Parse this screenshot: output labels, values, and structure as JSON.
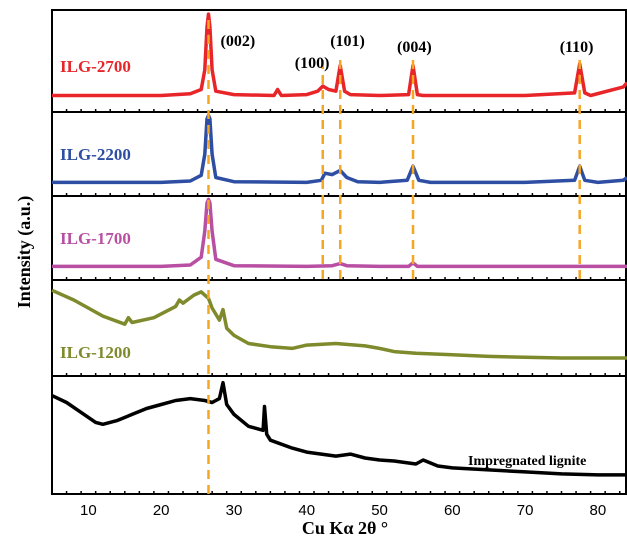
{
  "chart_data": {
    "type": "line",
    "xlabel": "Cu Kα 2θ °",
    "ylabel": "Intensity (a.u.)",
    "xlim": [
      5,
      84
    ],
    "xticks": [
      10,
      20,
      30,
      40,
      50,
      60,
      70,
      80
    ],
    "grid": false,
    "legend": "none",
    "reference_lines_x": [
      26.5,
      42.2,
      44.6,
      54.6,
      77.5
    ],
    "peak_labels": [
      {
        "text": "(002)",
        "x": 26.5,
        "panel": 0
      },
      {
        "text": "(100)",
        "x": 42.2,
        "panel": 0
      },
      {
        "text": "(101)",
        "x": 44.6,
        "panel": 0
      },
      {
        "text": "(004)",
        "x": 54.6,
        "panel": 0
      },
      {
        "text": "(110)",
        "x": 77.5,
        "panel": 0
      }
    ],
    "series": [
      {
        "name": "ILG-2700",
        "color": "#e8262a",
        "x": [
          5,
          20,
          24,
          25.5,
          26.0,
          26.3,
          26.5,
          26.7,
          27.0,
          27.5,
          30,
          35.5,
          36.0,
          36.5,
          40,
          41.5,
          42.2,
          43.0,
          44.0,
          44.6,
          45.2,
          46,
          50,
          54.0,
          54.6,
          55.2,
          56,
          60,
          70,
          76.8,
          77.5,
          78.2,
          79,
          83.5,
          84
        ],
        "y": [
          0.05,
          0.05,
          0.07,
          0.12,
          0.35,
          0.85,
          1.0,
          0.85,
          0.35,
          0.1,
          0.06,
          0.05,
          0.12,
          0.05,
          0.06,
          0.1,
          0.16,
          0.12,
          0.1,
          0.4,
          0.1,
          0.06,
          0.05,
          0.06,
          0.4,
          0.06,
          0.05,
          0.05,
          0.05,
          0.08,
          0.42,
          0.08,
          0.05,
          0.15,
          0.2
        ]
      },
      {
        "name": "ILG-2200",
        "color": "#2d4ea2",
        "x": [
          5,
          20,
          24,
          25.5,
          26.0,
          26.3,
          26.5,
          26.7,
          27.0,
          27.5,
          30,
          40,
          42.0,
          42.5,
          43.5,
          44.6,
          45.5,
          47,
          50,
          53.8,
          54.6,
          55.4,
          57,
          70,
          76.8,
          77.5,
          78.2,
          80,
          83.5,
          84
        ],
        "y": [
          0.05,
          0.05,
          0.07,
          0.15,
          0.45,
          0.95,
          1.0,
          0.95,
          0.45,
          0.12,
          0.06,
          0.05,
          0.08,
          0.18,
          0.16,
          0.22,
          0.12,
          0.06,
          0.05,
          0.08,
          0.28,
          0.08,
          0.05,
          0.05,
          0.08,
          0.28,
          0.08,
          0.05,
          0.08,
          0.12
        ]
      },
      {
        "name": "ILG-1700",
        "color": "#b84fa3",
        "x": [
          5,
          20,
          24,
          25.5,
          26.0,
          26.3,
          26.5,
          26.7,
          27.0,
          27.5,
          30,
          40,
          43.5,
          44.6,
          45.5,
          50,
          54.0,
          54.6,
          55.2,
          60,
          84
        ],
        "y": [
          0.05,
          0.05,
          0.07,
          0.18,
          0.55,
          0.95,
          1.0,
          0.95,
          0.55,
          0.15,
          0.06,
          0.05,
          0.06,
          0.09,
          0.06,
          0.05,
          0.05,
          0.1,
          0.05,
          0.05,
          0.05
        ]
      },
      {
        "name": "ILG-1200",
        "color": "#7f8a2c",
        "x": [
          5,
          8,
          12,
          15,
          15.5,
          16,
          19,
          22,
          22.5,
          23,
          24.5,
          25.5,
          26.5,
          27,
          28,
          28.5,
          29,
          30,
          32,
          35,
          38,
          40,
          44,
          48,
          50,
          52,
          55,
          60,
          65,
          70,
          75,
          80,
          84
        ],
        "y": [
          0.92,
          0.8,
          0.6,
          0.5,
          0.58,
          0.52,
          0.58,
          0.72,
          0.8,
          0.76,
          0.86,
          0.9,
          0.82,
          0.7,
          0.55,
          0.68,
          0.45,
          0.36,
          0.26,
          0.22,
          0.2,
          0.24,
          0.26,
          0.23,
          0.2,
          0.16,
          0.14,
          0.12,
          0.1,
          0.09,
          0.08,
          0.08,
          0.08
        ]
      },
      {
        "name": "Impregnated lignite",
        "color": "#000000",
        "x": [
          5,
          7,
          9,
          11,
          12,
          14,
          16,
          18,
          20,
          22,
          24,
          26,
          27,
          28,
          28.5,
          29,
          30,
          32,
          33,
          34,
          34.2,
          34.5,
          35,
          38,
          40,
          44,
          46,
          48,
          50,
          52,
          55,
          56,
          58,
          60,
          65,
          70,
          75,
          80,
          84
        ],
        "y": [
          0.85,
          0.78,
          0.68,
          0.58,
          0.56,
          0.6,
          0.66,
          0.72,
          0.76,
          0.8,
          0.82,
          0.8,
          0.78,
          0.82,
          0.98,
          0.76,
          0.66,
          0.54,
          0.52,
          0.5,
          0.74,
          0.46,
          0.4,
          0.32,
          0.28,
          0.24,
          0.26,
          0.22,
          0.2,
          0.19,
          0.16,
          0.2,
          0.14,
          0.12,
          0.1,
          0.08,
          0.06,
          0.05,
          0.05
        ]
      }
    ]
  }
}
